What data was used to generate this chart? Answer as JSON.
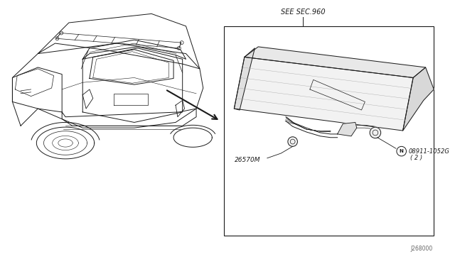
{
  "bg_color": "#ffffff",
  "line_color": "#1a1a1a",
  "see_sec_label": "SEE SEC.960",
  "part1_label": "26570M",
  "part2_label": "N 08911-1052G\n( 2 )",
  "footnote": "J268000",
  "footnote2": "268000"
}
